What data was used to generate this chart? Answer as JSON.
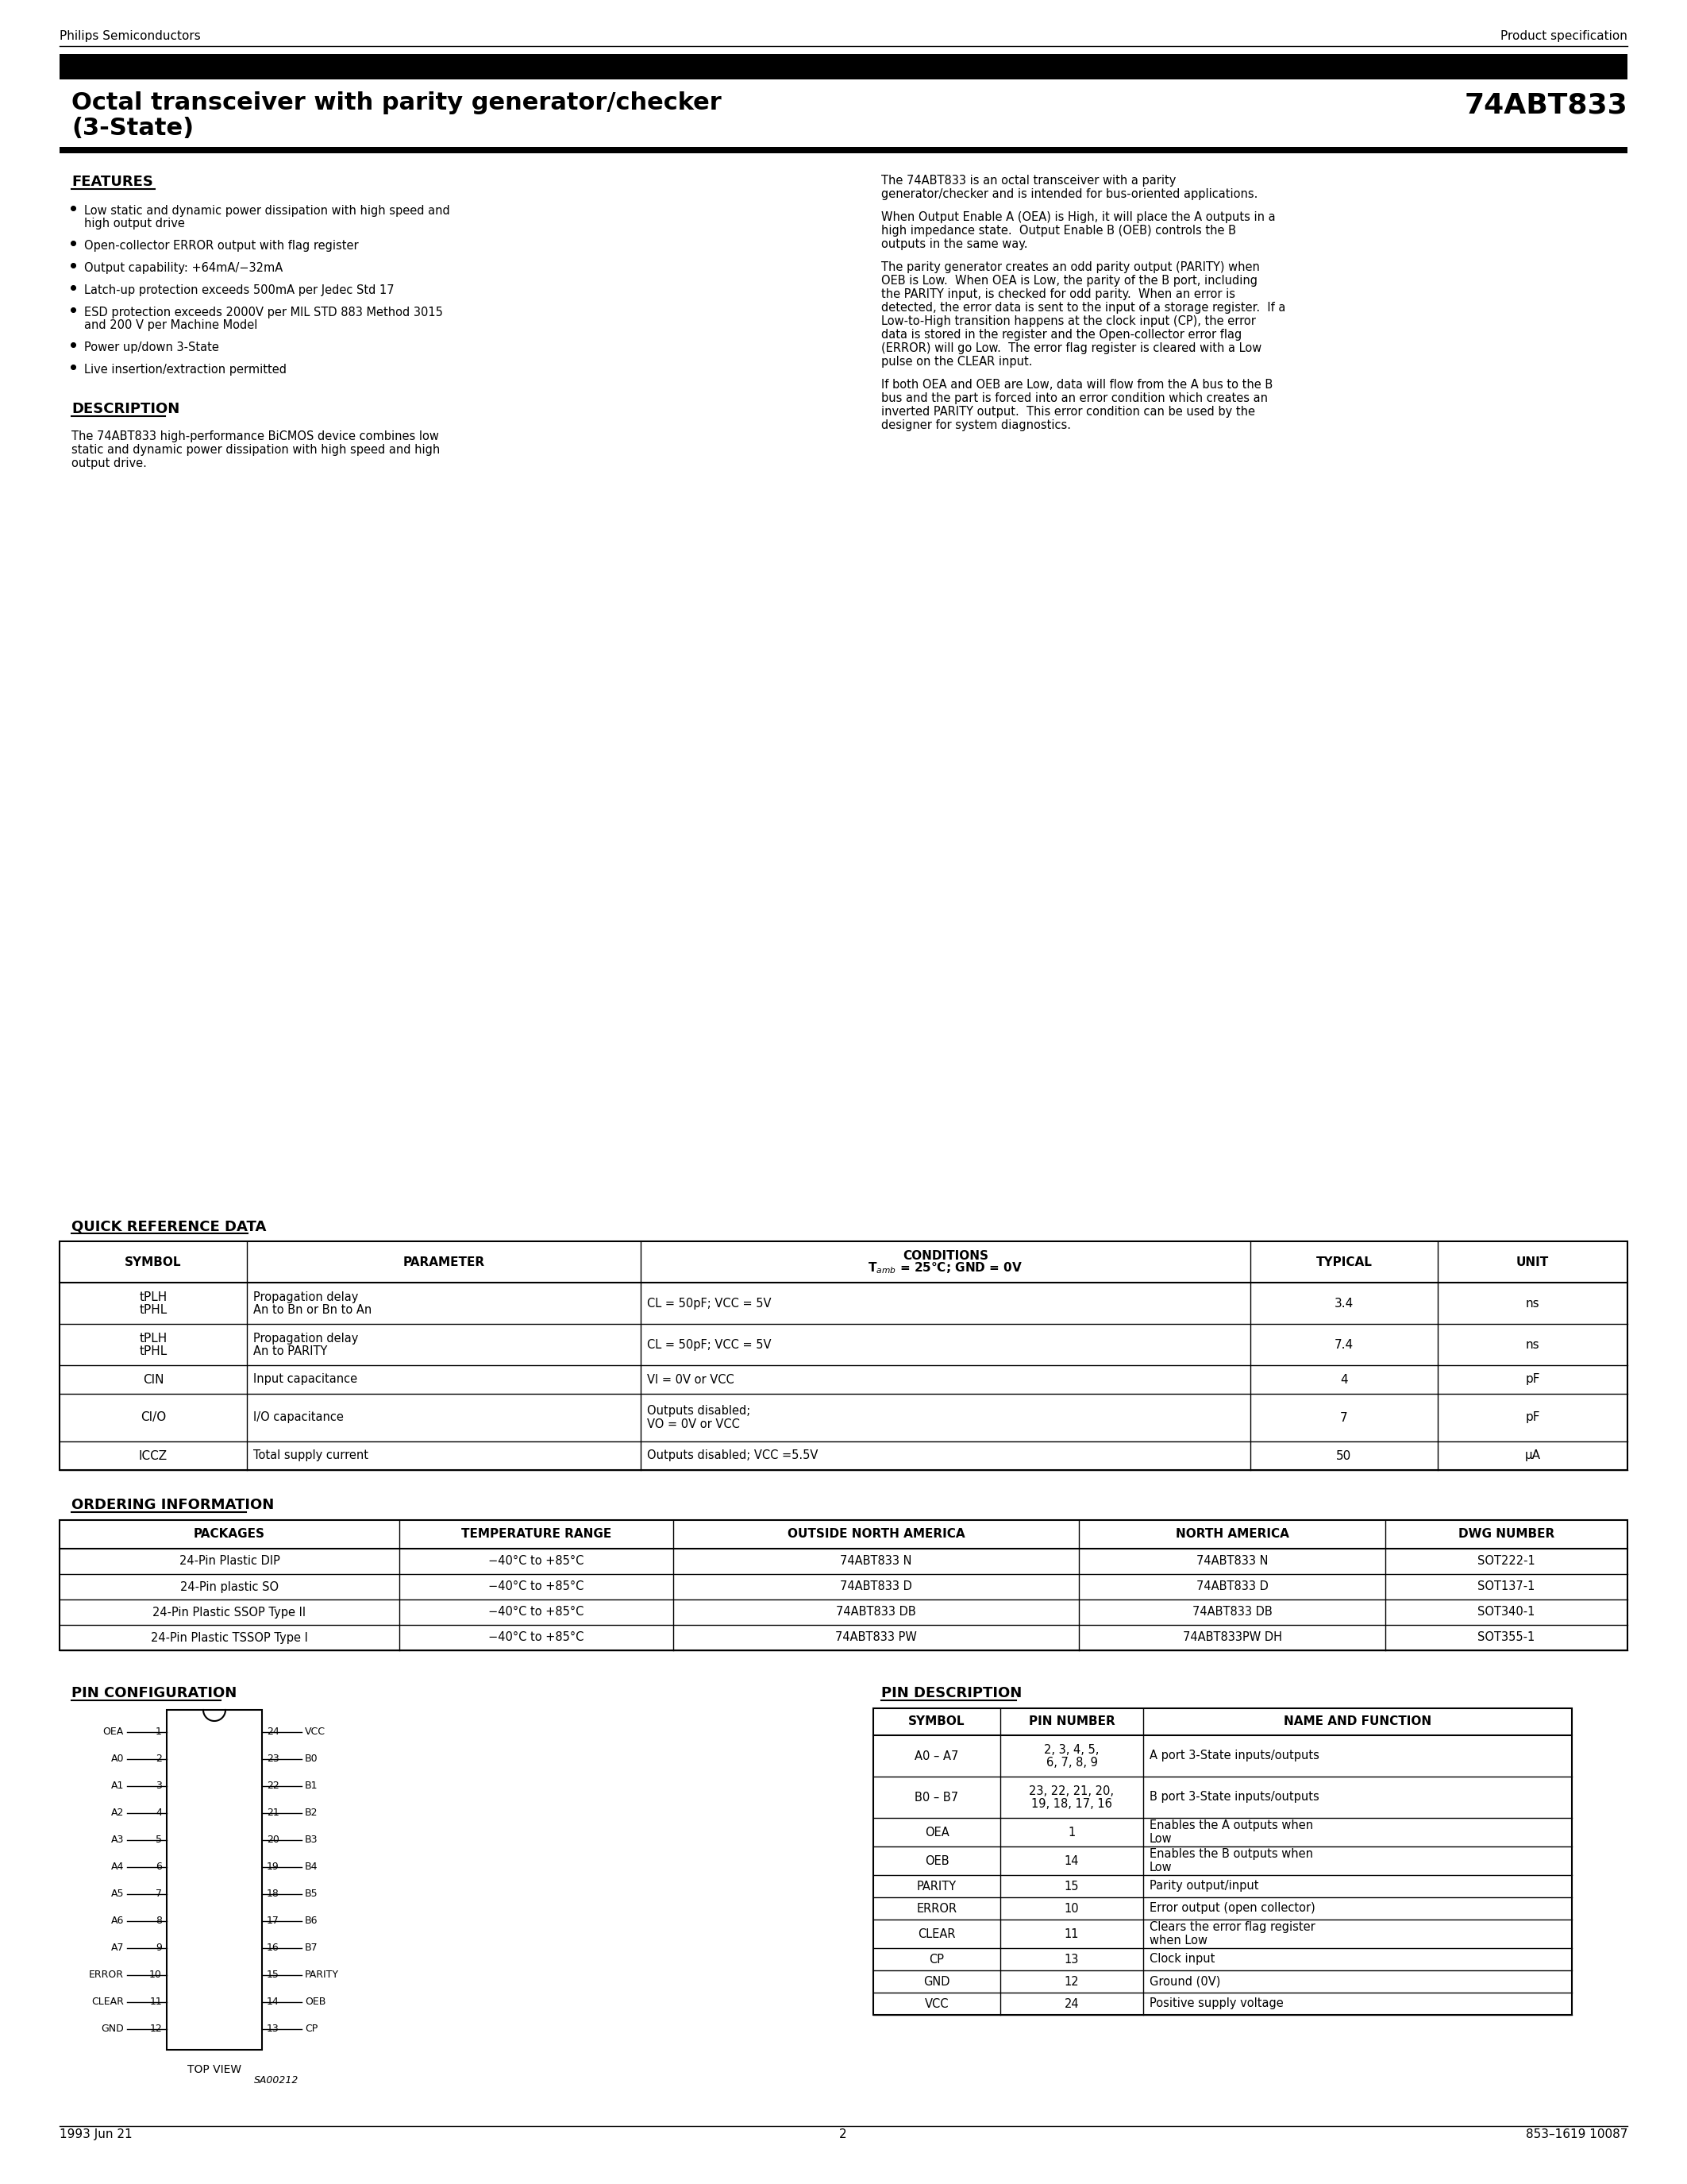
{
  "page_title_left": "Octal transceiver with parity generator/checker\n(3-State)",
  "page_title_right": "74ABT833",
  "header_left": "Philips Semiconductors",
  "header_right": "Product specification",
  "footer_left": "1993 Jun 21",
  "footer_center": "2",
  "footer_right": "853–1619 10087",
  "features_title": "FEATURES",
  "features": [
    "Low static and dynamic power dissipation with high speed and\nhigh output drive",
    "Open-collector ERROR output with flag register",
    "Output capability: +64mA/−32mA",
    "Latch-up protection exceeds 500mA per Jedec Std 17",
    "ESD protection exceeds 2000V per MIL STD 883 Method 3015\nand 200 V per Machine Model",
    "Power up/down 3-State",
    "Live insertion/extraction permitted"
  ],
  "description_title": "DESCRIPTION",
  "description_text": "The 74ABT833 high-performance BiCMOS device combines low\nstatic and dynamic power dissipation with high speed and high\noutput drive.",
  "right_col_para1": "The 74ABT833 is an octal transceiver with a parity\ngenerator/checker and is intended for bus-oriented applications.",
  "right_col_para2": "When Output Enable A (OEA) is High, it will place the A outputs in a\nhigh impedance state.  Output Enable B (OEB) controls the B\noutputs in the same way.",
  "right_col_para3": "The parity generator creates an odd parity output (PARITY) when\nOEB is Low.  When OEA is Low, the parity of the B port, including\nthe PARITY input, is checked for odd parity.  When an error is\ndetected, the error data is sent to the input of a storage register.  If a\nLow-to-High transition happens at the clock input (CP), the error\ndata is stored in the register and the Open-collector error flag\n(ERROR) will go Low.  The error flag register is cleared with a Low\npulse on the CLEAR input.",
  "right_col_para4": "If both OEA and OEB are Low, data will flow from the A bus to the B\nbus and the part is forced into an error condition which creates an\ninverted PARITY output.  This error condition can be used by the\ndesigner for system diagnostics.",
  "qrd_title": "QUICK REFERENCE DATA",
  "qrd_headers": [
    "SYMBOL",
    "PARAMETER",
    "CONDITIONS\nTamb = 25°C; GND = 0V",
    "TYPICAL",
    "UNIT"
  ],
  "qrd_rows": [
    [
      "tPLH\ntPHL",
      "Propagation delay\nAn to Bn or Bn to An",
      "CL = 50pF; VCC = 5V",
      "3.4",
      "ns"
    ],
    [
      "tPLH\ntPHL",
      "Propagation delay\nAn to PARITY",
      "CL = 50pF; VCC = 5V",
      "7.4",
      "ns"
    ],
    [
      "CIN",
      "Input capacitance",
      "VI = 0V or VCC",
      "4",
      "pF"
    ],
    [
      "CI/O",
      "I/O capacitance",
      "Outputs disabled;\nVO = 0V or VCC",
      "7",
      "pF"
    ],
    [
      "ICCZ",
      "Total supply current",
      "Outputs disabled; VCC =5.5V",
      "50",
      "μA"
    ]
  ],
  "ordering_title": "ORDERING INFORMATION",
  "ordering_headers": [
    "PACKAGES",
    "TEMPERATURE RANGE",
    "OUTSIDE NORTH AMERICA",
    "NORTH AMERICA",
    "DWG NUMBER"
  ],
  "ordering_rows": [
    [
      "24-Pin Plastic DIP",
      "−40°C to +85°C",
      "74ABT833 N",
      "74ABT833 N",
      "SOT222-1"
    ],
    [
      "24-Pin plastic SO",
      "−40°C to +85°C",
      "74ABT833 D",
      "74ABT833 D",
      "SOT137-1"
    ],
    [
      "24-Pin Plastic SSOP Type II",
      "−40°C to +85°C",
      "74ABT833 DB",
      "74ABT833 DB",
      "SOT340-1"
    ],
    [
      "24-Pin Plastic TSSOP Type I",
      "−40°C to +85°C",
      "74ABT833 PW",
      "74ABT833PW DH",
      "SOT355-1"
    ]
  ],
  "pin_config_title": "PIN CONFIGURATION",
  "pin_desc_title": "PIN DESCRIPTION",
  "pin_desc_headers": [
    "SYMBOL",
    "PIN NUMBER",
    "NAME AND FUNCTION"
  ],
  "pin_desc_rows": [
    [
      "A0 – A7",
      "2, 3, 4, 5,\n6, 7, 8, 9",
      "A port 3-State inputs/outputs"
    ],
    [
      "B0 – B7",
      "23, 22, 21, 20,\n19, 18, 17, 16",
      "B port 3-State inputs/outputs"
    ],
    [
      "OEA",
      "1",
      "Enables the A outputs when\nLow"
    ],
    [
      "OEB",
      "14",
      "Enables the B outputs when\nLow"
    ],
    [
      "PARITY",
      "15",
      "Parity output/input"
    ],
    [
      "ERROR",
      "10",
      "Error output (open collector)"
    ],
    [
      "CLEAR",
      "11",
      "Clears the error flag register\nwhen Low"
    ],
    [
      "CP",
      "13",
      "Clock input"
    ],
    [
      "GND",
      "12",
      "Ground (0V)"
    ],
    [
      "VCC",
      "24",
      "Positive supply voltage"
    ]
  ],
  "pin_left": [
    "OEA",
    "A0",
    "A1",
    "A2",
    "A3",
    "A4",
    "A5",
    "A6",
    "A7",
    "ERROR",
    "CLEAR",
    "GND"
  ],
  "pin_left_nums": [
    1,
    2,
    3,
    4,
    5,
    6,
    7,
    8,
    9,
    10,
    11,
    12
  ],
  "pin_right": [
    "VCC",
    "B0",
    "B1",
    "B2",
    "B3",
    "B4",
    "B5",
    "B6",
    "B7",
    "PARITY",
    "OEB",
    "CP"
  ],
  "pin_right_nums": [
    24,
    23,
    22,
    21,
    20,
    19,
    18,
    17,
    16,
    15,
    14,
    13
  ]
}
